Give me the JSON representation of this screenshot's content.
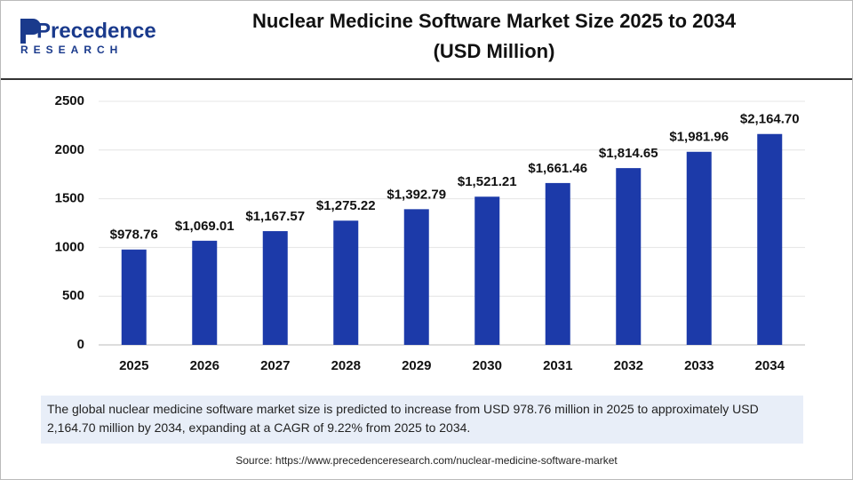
{
  "logo": {
    "brand": "Precedence",
    "tagline": "RESEARCH"
  },
  "chart_data": {
    "type": "bar",
    "title": "Nuclear Medicine Software Market Size 2025 to 2034",
    "subtitle": "(USD Million)",
    "categories": [
      "2025",
      "2026",
      "2027",
      "2028",
      "2029",
      "2030",
      "2031",
      "2032",
      "2033",
      "2034"
    ],
    "values": [
      978.76,
      1069.01,
      1167.57,
      1275.22,
      1392.79,
      1521.21,
      1661.46,
      1814.65,
      1981.96,
      2164.7
    ],
    "value_labels": [
      "$978.76",
      "$1,069.01",
      "$1,167.57",
      "$1,275.22",
      "$1,392.79",
      "$1,521.21",
      "$1,661.46",
      "$1,814.65",
      "$1,981.96",
      "$2,164.70"
    ],
    "color": "#1c3aa9",
    "ylim": [
      0,
      2500
    ],
    "yticks": [
      0,
      500,
      1000,
      1500,
      2000,
      2500
    ],
    "grid": true
  },
  "description": "The global nuclear medicine software market size is predicted to increase from USD 978.76 million in 2025 to approximately USD 2,164.70 million by 2034, expanding at a CAGR of 9.22% from 2025 to 2034.",
  "source": "Source: https://www.precedenceresearch.com/nuclear-medicine-software-market"
}
